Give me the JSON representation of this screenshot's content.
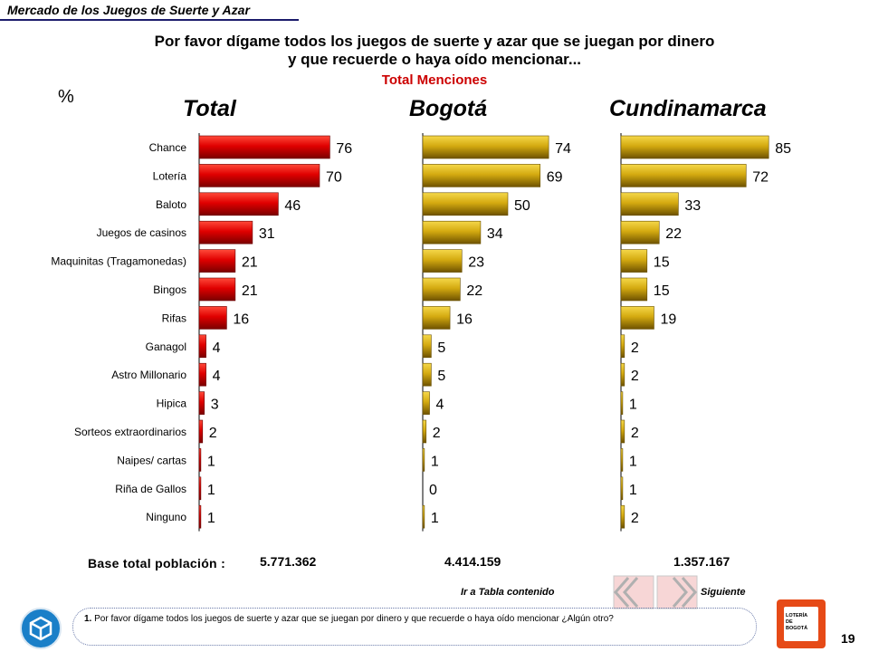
{
  "header": {
    "title": "Mercado de los Juegos de Suerte y Azar"
  },
  "question": {
    "line1": "Por favor dígame todos los juegos de suerte y azar que se juegan por dinero",
    "line2": "y que recuerde o haya oído mencionar...",
    "subtitle": "Total Menciones"
  },
  "unit_label": "%",
  "chart_data": {
    "type": "bar",
    "orientation": "horizontal",
    "categories": [
      "Chance",
      "Lotería",
      "Baloto",
      "Juegos de casinos",
      "Maquinitas (Tragamonedas)",
      "Bingos",
      "Rifas",
      "Ganagol",
      "Astro Millonario",
      "Hipica",
      "Sorteos extraordinarios",
      "Naipes/ cartas",
      "Riña de Gallos",
      "Ninguno"
    ],
    "series": [
      {
        "name": "Total",
        "color": "#d40000",
        "values": [
          76,
          70,
          46,
          31,
          21,
          21,
          16,
          4,
          4,
          3,
          2,
          1,
          1,
          1
        ]
      },
      {
        "name": "Bogotá",
        "color": "#d4a800",
        "values": [
          74,
          69,
          50,
          34,
          23,
          22,
          16,
          5,
          5,
          4,
          2,
          1,
          0,
          1
        ]
      },
      {
        "name": "Cundinamarca",
        "color": "#d4a800",
        "values": [
          85,
          72,
          33,
          22,
          15,
          15,
          19,
          2,
          2,
          1,
          2,
          1,
          1,
          2
        ]
      }
    ],
    "bases": [
      "5.771.362",
      "4.414.159",
      "1.357.167"
    ],
    "data_labels": true,
    "grid": false
  },
  "base": {
    "label": "Base  total  población  :"
  },
  "nav": {
    "back_label": "Ir a Tabla contenido",
    "next_label": "Siguiente"
  },
  "footnote": {
    "number": "1.",
    "text": "Por favor dígame todos los juegos de suerte y azar que se juegan por dinero y que recuerde o haya oído mencionar ¿Algún otro?"
  },
  "logo": {
    "line1": "LOTERÍA",
    "line2": "DE",
    "line3": "BOGOTÁ"
  },
  "page_number": "19"
}
